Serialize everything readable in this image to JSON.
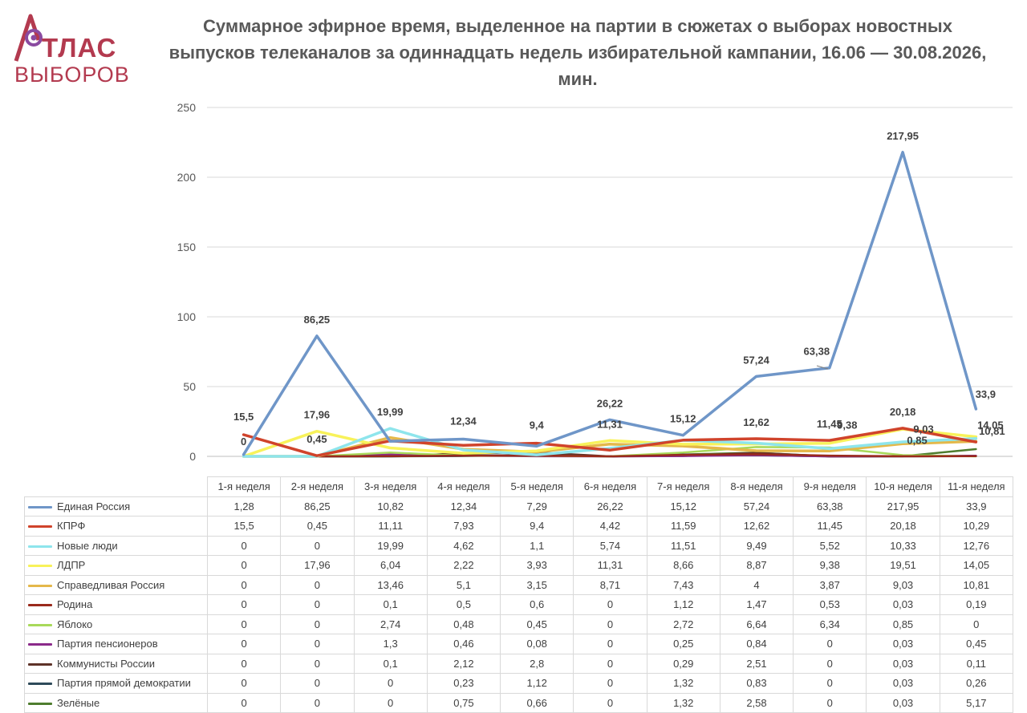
{
  "logo": {
    "line1": "ТЛАС",
    "line2": "ВЫБОРОВ",
    "accent": "#b33a4f",
    "ring": "#8a4aa0"
  },
  "title": "Суммарное эфирное время, выделенное на партии в сюжетах о выборах новостных выпусков телеканалов за одиннадцать недель избирательной кампании, 16.06 — 30.08.2026, мин.",
  "chart_data": {
    "type": "line",
    "categories": [
      "1-я неделя",
      "2-я неделя",
      "3-я неделя",
      "4-я неделя",
      "5-я неделя",
      "6-я неделя",
      "7-я неделя",
      "8-я неделя",
      "9-я неделя",
      "10-я неделя",
      "11-я неделя"
    ],
    "ylim": [
      0,
      250
    ],
    "yticks": [
      "0",
      "50",
      "100",
      "150",
      "200",
      "250"
    ],
    "grid": true,
    "series": [
      {
        "name": "Единая Россия",
        "color": "#6f96c8",
        "width": 3.5,
        "values": [
          1.28,
          86.25,
          10.82,
          12.34,
          7.29,
          26.22,
          15.12,
          57.24,
          63.38,
          217.95,
          33.9
        ],
        "display": [
          "1,28",
          "86,25",
          "10,82",
          "12,34",
          "7,29",
          "26,22",
          "15,12",
          "57,24",
          "63,38",
          "217,95",
          "33,9"
        ]
      },
      {
        "name": "КПРФ",
        "color": "#d0432b",
        "width": 3.5,
        "values": [
          15.5,
          0.45,
          11.11,
          7.93,
          9.4,
          4.42,
          11.59,
          12.62,
          11.45,
          20.18,
          10.29
        ],
        "display": [
          "15,5",
          "0,45",
          "11,11",
          "7,93",
          "9,4",
          "4,42",
          "11,59",
          "12,62",
          "11,45",
          "20,18",
          "10,29"
        ]
      },
      {
        "name": "Новые люди",
        "color": "#8ee5ec",
        "width": 3.5,
        "values": [
          0,
          0,
          19.99,
          4.62,
          1.1,
          5.74,
          11.51,
          9.49,
          5.52,
          10.33,
          12.76
        ],
        "display": [
          "0",
          "0",
          "19,99",
          "4,62",
          "1,1",
          "5,74",
          "11,51",
          "9,49",
          "5,52",
          "10,33",
          "12,76"
        ]
      },
      {
        "name": "ЛДПР",
        "color": "#f8f25a",
        "width": 3.5,
        "values": [
          0,
          17.96,
          6.04,
          2.22,
          3.93,
          11.31,
          8.66,
          8.87,
          9.38,
          19.51,
          14.05
        ],
        "display": [
          "0",
          "17,96",
          "6,04",
          "2,22",
          "3,93",
          "11,31",
          "8,66",
          "8,87",
          "9,38",
          "19,51",
          "14,05"
        ]
      },
      {
        "name": "Справедливая Россия",
        "color": "#e4b84a",
        "width": 3.5,
        "values": [
          0,
          0,
          13.46,
          5.1,
          3.15,
          8.71,
          7.43,
          4,
          3.87,
          9.03,
          10.81
        ],
        "display": [
          "0",
          "0",
          "13,46",
          "5,1",
          "3,15",
          "8,71",
          "7,43",
          "4",
          "3,87",
          "9,03",
          "10,81"
        ]
      },
      {
        "name": "Родина",
        "color": "#9a2a1c",
        "width": 2.5,
        "values": [
          0,
          0,
          0.1,
          0.5,
          0.6,
          0,
          1.12,
          1.47,
          0.53,
          0.03,
          0.19
        ],
        "display": [
          "0",
          "0",
          "0,1",
          "0,5",
          "0,6",
          "0",
          "1,12",
          "1,47",
          "0,53",
          "0,03",
          "0,19"
        ]
      },
      {
        "name": "Яблоко",
        "color": "#a8d95a",
        "width": 2.5,
        "values": [
          0,
          0,
          2.74,
          0.48,
          0.45,
          0,
          2.72,
          6.64,
          6.34,
          0.85,
          0
        ],
        "display": [
          "0",
          "0",
          "2,74",
          "0,48",
          "0,45",
          "0",
          "2,72",
          "6,64",
          "6,34",
          "0,85",
          "0"
        ]
      },
      {
        "name": "Партия пенсионеров",
        "color": "#8b2a8a",
        "width": 2.5,
        "values": [
          0,
          0,
          1.3,
          0.46,
          0.08,
          0,
          0.25,
          0.84,
          0,
          0.03,
          0.45
        ],
        "display": [
          "0",
          "0",
          "1,3",
          "0,46",
          "0,08",
          "0",
          "0,25",
          "0,84",
          "0",
          "0,03",
          "0,45"
        ]
      },
      {
        "name": "Коммунисты России",
        "color": "#5e3328",
        "width": 2.5,
        "values": [
          0,
          0,
          0.1,
          2.12,
          2.8,
          0,
          0.29,
          2.51,
          0,
          0.03,
          0.11
        ],
        "display": [
          "0",
          "0",
          "0,1",
          "2,12",
          "2,8",
          "0",
          "0,29",
          "2,51",
          "0",
          "0,03",
          "0,11"
        ]
      },
      {
        "name": "Партия прямой демократии",
        "color": "#2e4a5a",
        "width": 2.5,
        "values": [
          0,
          0,
          0,
          0.23,
          1.12,
          0,
          1.32,
          0.83,
          0,
          0.03,
          0.26
        ],
        "display": [
          "0",
          "0",
          "0",
          "0,23",
          "1,12",
          "0",
          "1,32",
          "0,83",
          "0",
          "0,03",
          "0,26"
        ]
      },
      {
        "name": "Зелёные",
        "color": "#4e7d2e",
        "width": 2.5,
        "values": [
          0,
          0,
          0,
          0.75,
          0.66,
          0,
          1.32,
          2.58,
          0,
          0.03,
          5.17
        ],
        "display": [
          "0",
          "0",
          "0",
          "0,75",
          "0,66",
          "0",
          "1,32",
          "2,58",
          "0",
          "0,03",
          "5,17"
        ]
      }
    ],
    "annotations": [
      {
        "text": "15,5",
        "cat": 0,
        "value": 15.5
      },
      {
        "text": "0",
        "cat": 0,
        "value": 0
      },
      {
        "text": "86,25",
        "cat": 1,
        "value": 86.25
      },
      {
        "text": "17,96",
        "cat": 1,
        "value": 17.96
      },
      {
        "text": "0,45",
        "cat": 1,
        "value": 0.45
      },
      {
        "text": "19,99",
        "cat": 2,
        "value": 19.99
      },
      {
        "text": "12,34",
        "cat": 3,
        "value": 12.34
      },
      {
        "text": "9,4",
        "cat": 4,
        "value": 9.4
      },
      {
        "text": "26,22",
        "cat": 5,
        "value": 26.22
      },
      {
        "text": "11,31",
        "cat": 5,
        "value": 11.31
      },
      {
        "text": "15,12",
        "cat": 6,
        "value": 15.12
      },
      {
        "text": "57,24",
        "cat": 7,
        "value": 57.24
      },
      {
        "text": "12,62",
        "cat": 7,
        "value": 12.62
      },
      {
        "text": "63,38",
        "cat": 8,
        "value": 63.38
      },
      {
        "text": "11,45",
        "cat": 8,
        "value": 11.45
      },
      {
        "text": "9,38",
        "cat": 8,
        "value": 9.38
      },
      {
        "text": "217,95",
        "cat": 9,
        "value": 217.95
      },
      {
        "text": "20,18",
        "cat": 9,
        "value": 20.18
      },
      {
        "text": "9,03",
        "cat": 9,
        "value": 9.03
      },
      {
        "text": "0,85",
        "cat": 9,
        "value": 0.85
      },
      {
        "text": "33,9",
        "cat": 10,
        "value": 33.9
      },
      {
        "text": "14,05",
        "cat": 10,
        "value": 14.05
      },
      {
        "text": "10,81",
        "cat": 10,
        "value": 10.81
      }
    ]
  }
}
